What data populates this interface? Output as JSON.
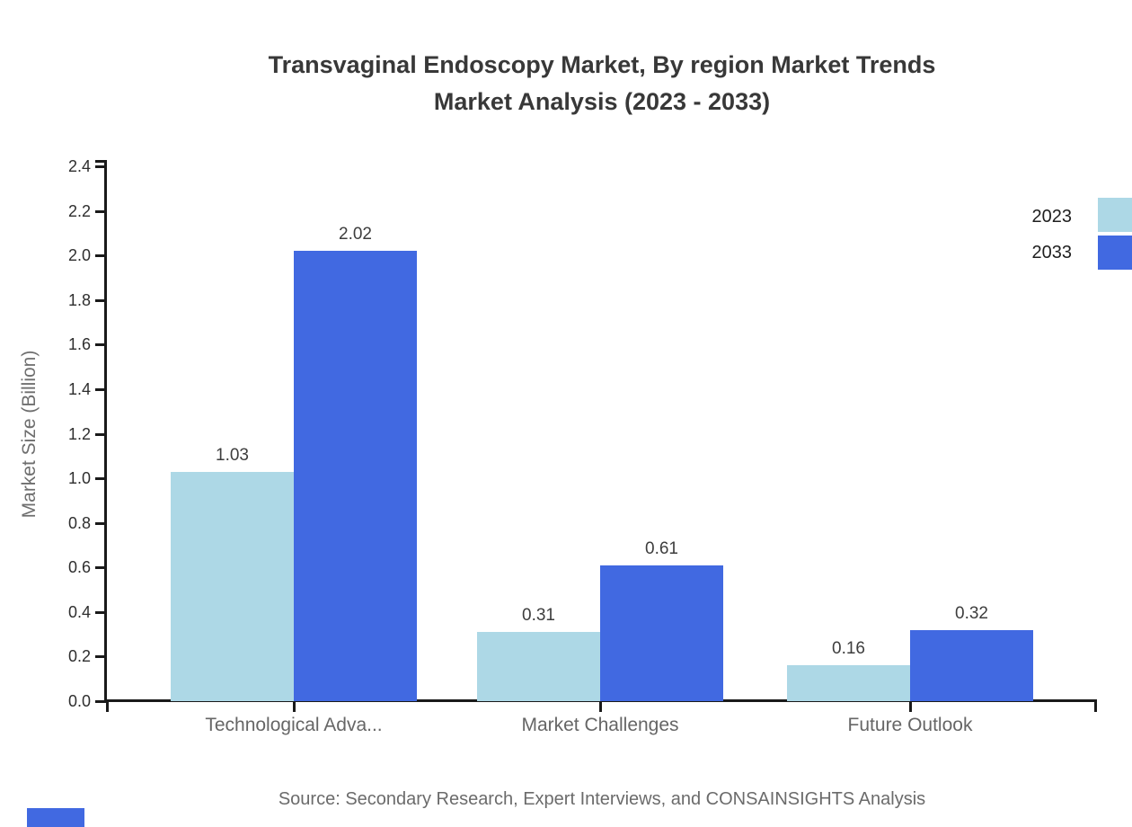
{
  "title": {
    "line1": "Transvaginal Endoscopy Market, By region Market Trends",
    "line2": "Market Analysis (2023 - 2033)"
  },
  "source": {
    "text": "Source: Secondary Research, Expert Interviews, and CONSAINSIGHTS Analysis"
  },
  "legend": {
    "items": [
      {
        "label": "2023",
        "color": "#ADD8E6"
      },
      {
        "label": "2033",
        "color": "#4169E1"
      }
    ]
  },
  "colors": {
    "series_2023": "#ADD8E6",
    "series_2033": "#4169E1",
    "axis": "#1a1a1a",
    "title_text": "#383838",
    "muted_text": "#6b6b6b"
  },
  "chart_data": {
    "type": "bar",
    "title": "Transvaginal Endoscopy Market, By region Market Trends Market Analysis (2023 - 2033)",
    "categories": [
      "Technological Adva...",
      "Market Challenges",
      "Future Outlook"
    ],
    "series": [
      {
        "name": "2023",
        "color": "#ADD8E6",
        "values": [
          1.03,
          0.31,
          0.16
        ]
      },
      {
        "name": "2033",
        "color": "#4169E1",
        "values": [
          2.02,
          0.61,
          0.32
        ]
      }
    ],
    "xlabel": "",
    "ylabel": "Market Size (Billion)",
    "ylim": [
      0,
      2.4
    ],
    "ytick_step": 0.2,
    "ytick_labels": [
      "0.0",
      "0.2",
      "0.4",
      "0.6",
      "0.8",
      "1.0",
      "1.2",
      "1.4",
      "1.6",
      "1.8",
      "2.0",
      "2.2",
      "2.4"
    ],
    "value_labels": [
      [
        "1.03",
        "0.31",
        "0.16"
      ],
      [
        "2.02",
        "0.61",
        "0.32"
      ]
    ],
    "grid": false,
    "legend_position": "top-right"
  }
}
